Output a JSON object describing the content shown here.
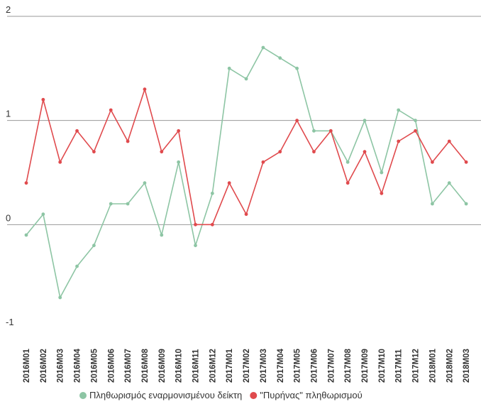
{
  "chart_data": {
    "type": "line",
    "title": "",
    "xlabel": "",
    "ylabel": "",
    "ylim": [
      -1,
      2
    ],
    "yticks": [
      -1,
      0,
      1,
      2
    ],
    "grid": true,
    "legend_position": "bottom",
    "categories": [
      "2016M01",
      "2016M02",
      "2016M03",
      "2016M04",
      "2016M05",
      "2016M06",
      "2016M07",
      "2016M08",
      "2016M09",
      "2016M10",
      "2016M11",
      "2016M12",
      "2017M01",
      "2017M02",
      "2017M03",
      "2017M04",
      "2017M05",
      "2017M06",
      "2017M07",
      "2017M08",
      "2017M09",
      "2017M10",
      "2017M11",
      "2017M12",
      "2018M01",
      "2018M02",
      "2018M03"
    ],
    "series": [
      {
        "name": "Πληθωρισμός εναρμονισμένου δείκτη",
        "color": "#8dc5a4",
        "values": [
          -0.1,
          0.1,
          -0.7,
          -0.4,
          -0.2,
          0.2,
          0.2,
          0.4,
          -0.1,
          0.6,
          -0.2,
          0.3,
          1.5,
          1.4,
          1.7,
          1.6,
          1.5,
          0.9,
          0.9,
          0.6,
          1.0,
          0.5,
          1.1,
          1.0,
          0.2,
          0.4,
          0.2
        ]
      },
      {
        "name": "\"Πυρήνας\" πληθωρισμού",
        "color": "#e04a4d",
        "values": [
          0.4,
          1.2,
          0.6,
          0.9,
          0.7,
          1.1,
          0.8,
          1.3,
          0.7,
          0.9,
          0.0,
          0.0,
          0.4,
          0.1,
          0.6,
          0.7,
          1.0,
          0.7,
          0.9,
          0.4,
          0.7,
          0.3,
          0.8,
          0.9,
          0.6,
          0.8,
          0.6
        ]
      }
    ]
  }
}
